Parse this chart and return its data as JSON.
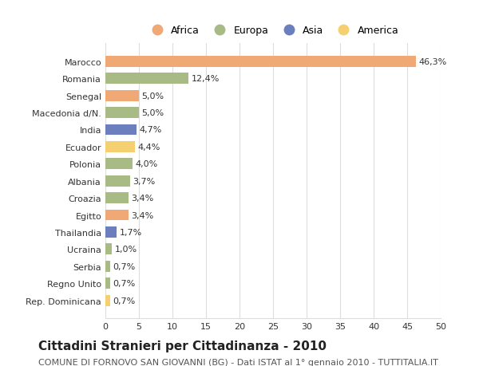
{
  "categories": [
    "Marocco",
    "Romania",
    "Senegal",
    "Macedonia d/N.",
    "India",
    "Ecuador",
    "Polonia",
    "Albania",
    "Croazia",
    "Egitto",
    "Thailandia",
    "Ucraina",
    "Serbia",
    "Regno Unito",
    "Rep. Dominicana"
  ],
  "values": [
    46.3,
    12.4,
    5.0,
    5.0,
    4.7,
    4.4,
    4.0,
    3.7,
    3.4,
    3.4,
    1.7,
    1.0,
    0.7,
    0.7,
    0.7
  ],
  "labels": [
    "46,3%",
    "12,4%",
    "5,0%",
    "5,0%",
    "4,7%",
    "4,4%",
    "4,0%",
    "3,7%",
    "3,4%",
    "3,4%",
    "1,7%",
    "1,0%",
    "0,7%",
    "0,7%",
    "0,7%"
  ],
  "continents": [
    "Africa",
    "Europa",
    "Africa",
    "Europa",
    "Asia",
    "America",
    "Europa",
    "Europa",
    "Europa",
    "Africa",
    "Asia",
    "Europa",
    "Europa",
    "Europa",
    "America"
  ],
  "continent_colors": {
    "Africa": "#F0A875",
    "Europa": "#A8BB85",
    "Asia": "#6B7FBF",
    "America": "#F5D070"
  },
  "legend_order": [
    "Africa",
    "Europa",
    "Asia",
    "America"
  ],
  "title": "Cittadini Stranieri per Cittadinanza - 2010",
  "subtitle": "COMUNE DI FORNOVO SAN GIOVANNI (BG) - Dati ISTAT al 1° gennaio 2010 - TUTTITALIA.IT",
  "xlim": [
    0,
    50
  ],
  "xticks": [
    0,
    5,
    10,
    15,
    20,
    25,
    30,
    35,
    40,
    45,
    50
  ],
  "background_color": "#ffffff",
  "grid_color": "#dddddd",
  "bar_height": 0.65,
  "title_fontsize": 11,
  "subtitle_fontsize": 8,
  "label_fontsize": 8,
  "tick_fontsize": 8,
  "legend_fontsize": 9
}
